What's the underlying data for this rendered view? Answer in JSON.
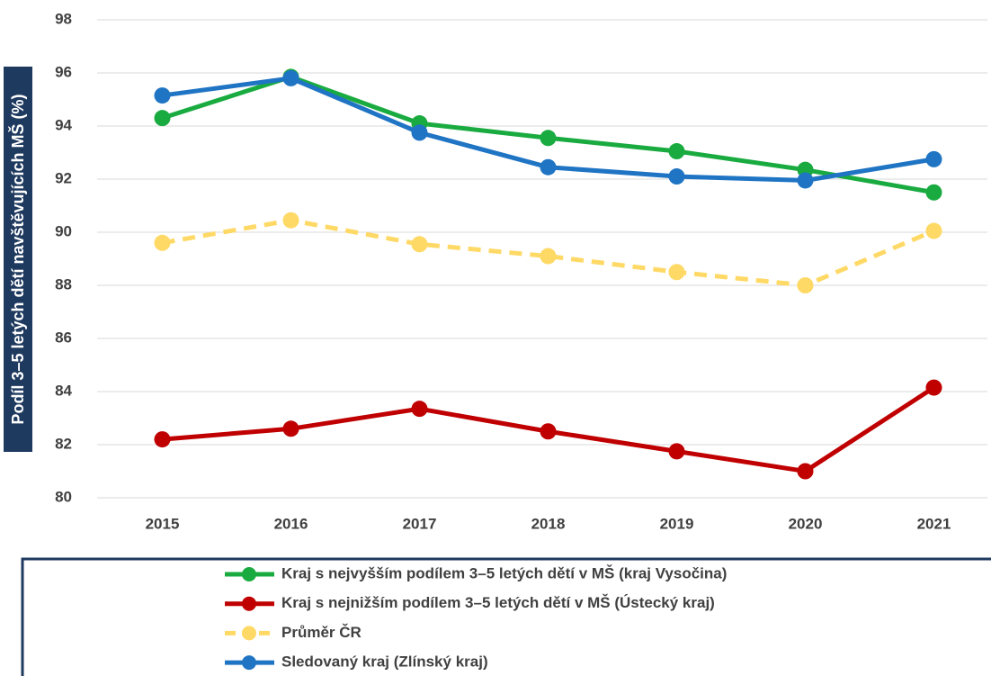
{
  "chart_data": {
    "type": "line",
    "ylabel": "Podíl 3–5 letých dětí navštěvujících MŠ (%)",
    "categories": [
      "2015",
      "2016",
      "2017",
      "2018",
      "2019",
      "2020",
      "2021"
    ],
    "series": [
      {
        "name": "Kraj s nejvyšším podílem 3–5 letých dětí v MŠ (kraj Vysočina)",
        "color": "#1aab40",
        "linestyle": "solid",
        "values": [
          94.3,
          95.85,
          94.1,
          93.55,
          93.05,
          92.35,
          91.5
        ]
      },
      {
        "name": "Kraj s nejnižším podílem 3–5 letých dětí v MŠ (Ústecký kraj)",
        "color": "#c00000",
        "linestyle": "solid",
        "values": [
          82.2,
          82.6,
          83.35,
          82.5,
          81.75,
          81.0,
          84.15
        ]
      },
      {
        "name": "Průměr ČR",
        "color": "#ffd966",
        "linestyle": "dashed",
        "values": [
          89.6,
          90.45,
          89.55,
          89.1,
          88.5,
          88.0,
          90.05
        ]
      },
      {
        "name": "Sledovaný kraj (Zlínský kraj)",
        "color": "#1f74c4",
        "linestyle": "solid",
        "values": [
          95.15,
          95.8,
          93.75,
          92.45,
          92.1,
          91.95,
          92.75
        ]
      }
    ],
    "ylim": [
      80,
      98
    ],
    "yticks": [
      80,
      82,
      84,
      86,
      88,
      90,
      92,
      94,
      96,
      98
    ],
    "grid": true,
    "legend": "bottom"
  }
}
